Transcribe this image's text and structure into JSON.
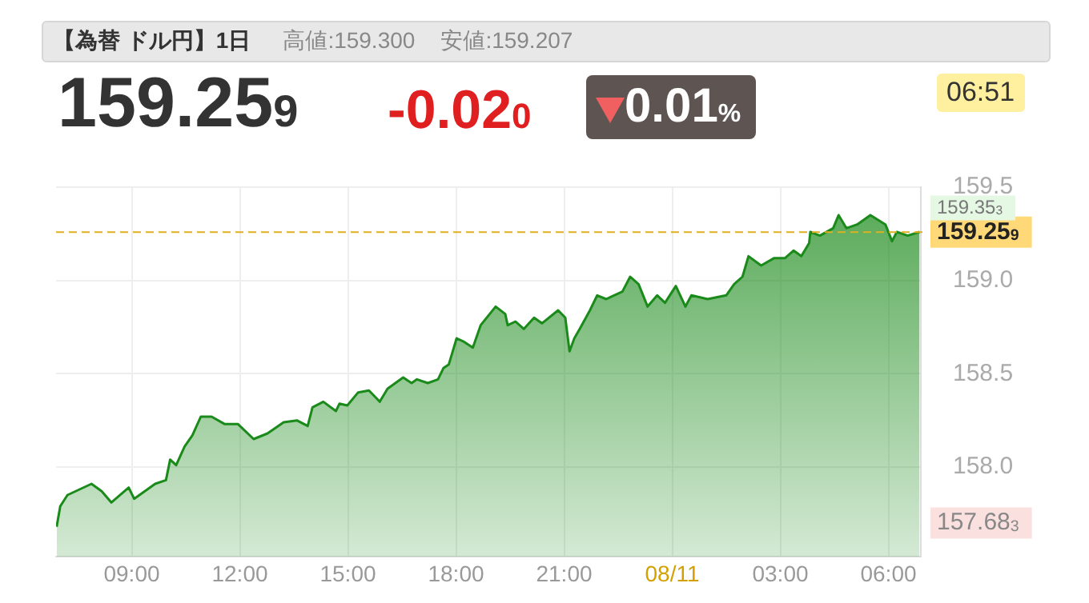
{
  "chart_data": {
    "type": "area",
    "title": "【為替 ドル円】1日",
    "annotations": [
      "高値:159.300",
      "安値:159.207",
      "159.259",
      "-0.020",
      "0.01%",
      "06:51",
      "159.353",
      "157.683"
    ],
    "x": [
      "--08-10T06:55",
      "--08-10T07:01",
      "--08-10T07:13",
      "--08-10T07:53",
      "--08-10T08:10",
      "--08-10T08:26",
      "--08-10T08:55",
      "--08-10T09:04",
      "--08-10T09:39",
      "--08-10T09:57",
      "--08-10T10:04",
      "--08-10T10:14",
      "--08-10T10:28",
      "--08-10T10:41",
      "--08-10T10:55",
      "--08-10T11:13",
      "--08-10T11:35",
      "--08-10T11:57",
      "--08-10T12:23",
      "--08-10T12:46",
      "--08-10T13:13",
      "--08-10T13:35",
      "--08-10T13:53",
      "--08-10T14:01",
      "--08-10T14:19",
      "--08-10T14:40",
      "--08-10T14:46",
      "--08-10T14:59",
      "--08-10T15:17",
      "--08-10T15:35",
      "--08-10T15:53",
      "--08-10T16:06",
      "--08-10T16:32",
      "--08-10T16:46",
      "--08-10T16:55",
      "--08-10T17:13",
      "--08-10T17:30",
      "--08-10T17:39",
      "--08-10T17:48",
      "--08-10T18:01",
      "--08-10T18:14",
      "--08-10T18:28",
      "--08-10T18:41",
      "--08-10T19:06",
      "--08-10T19:22",
      "--08-10T19:26",
      "--08-10T19:39",
      "--08-10T19:53",
      "--08-10T20:10",
      "--08-10T20:23",
      "--08-10T20:50",
      "--08-10T21:02",
      "--08-10T21:09",
      "--08-10T21:17",
      "--08-10T21:26",
      "--08-10T21:43",
      "--08-10T21:55",
      "--08-10T22:10",
      "--08-10T22:37",
      "--08-10T22:50",
      "--08-10T23:04",
      "--08-10T23:19",
      "--08-10T23:35",
      "--08-10T23:48",
      "--08-11T00:06",
      "--08-11T00:22",
      "--08-11T00:32",
      "--08-11T00:59",
      "--08-11T01:30",
      "--08-11T01:43",
      "--08-11T01:57",
      "--08-11T02:07",
      "--08-11T02:28",
      "--08-11T02:50",
      "--08-11T03:08",
      "--08-11T03:22",
      "--08-11T03:35",
      "--08-11T03:48",
      "--08-11T03:50",
      "--08-11T04:06",
      "--08-11T04:28",
      "--08-11T04:37",
      "--08-11T04:50",
      "--08-11T05:08",
      "--08-11T05:30",
      "--08-11T05:55",
      "--08-11T06:06",
      "--08-11T06:14",
      "--08-11T06:32",
      "--08-11T06:52"
    ],
    "series": [
      {
        "color": "#1a8a1a",
        "values": [
          157.68,
          157.79,
          157.85,
          157.91,
          157.87,
          157.81,
          157.89,
          157.83,
          157.91,
          157.93,
          158.04,
          158.01,
          158.11,
          158.17,
          158.27,
          158.27,
          158.23,
          158.23,
          158.15,
          158.18,
          158.24,
          158.25,
          158.22,
          158.32,
          158.35,
          158.3,
          158.34,
          158.33,
          158.4,
          158.41,
          158.35,
          158.42,
          158.48,
          158.45,
          158.47,
          158.45,
          158.47,
          158.53,
          158.55,
          158.69,
          158.67,
          158.64,
          158.76,
          158.86,
          158.82,
          158.76,
          158.78,
          158.74,
          158.8,
          158.77,
          158.84,
          158.8,
          158.62,
          158.69,
          158.74,
          158.84,
          158.92,
          158.9,
          158.94,
          159.02,
          158.98,
          158.86,
          158.92,
          158.88,
          158.97,
          158.86,
          158.92,
          158.9,
          158.92,
          158.98,
          159.02,
          159.13,
          159.08,
          159.12,
          159.12,
          159.16,
          159.13,
          159.2,
          159.26,
          159.24,
          159.28,
          159.35,
          159.28,
          159.3,
          159.35,
          159.3,
          159.21,
          159.26,
          159.24,
          159.26
        ]
      }
    ],
    "xlim": [
      "--08-10T06:54",
      "--08-11T06:54"
    ],
    "xticks": [
      {
        "value": "--08-10T09:00",
        "label": "09:00"
      },
      {
        "value": "--08-10T12:00",
        "label": "12:00"
      },
      {
        "value": "--08-10T15:00",
        "label": "15:00"
      },
      {
        "value": "--08-10T18:00",
        "label": "18:00"
      },
      {
        "value": "--08-10T21:00",
        "label": "21:00"
      },
      {
        "value": "--08-11",
        "label": "08/11"
      },
      {
        "value": "--08-11T03:00",
        "label": "03:00"
      },
      {
        "value": "--08-11T06:00",
        "label": "06:00"
      }
    ],
    "ylim": [
      157.52,
      159.5
    ],
    "yticks": [
      {
        "value": 158,
        "label": "158.0"
      },
      {
        "value": 158.5,
        "label": "158.5"
      },
      {
        "value": 159,
        "label": "159.0"
      },
      {
        "value": 159.5,
        "label": "159.5"
      }
    ],
    "ref_lines": [
      {
        "axis": "y",
        "value": 159.259,
        "label": "159.259",
        "color": "#e0b020",
        "line_style": "dashed"
      }
    ],
    "grid": true,
    "legend": false,
    "marker": "none",
    "line_style": "solid"
  }
}
